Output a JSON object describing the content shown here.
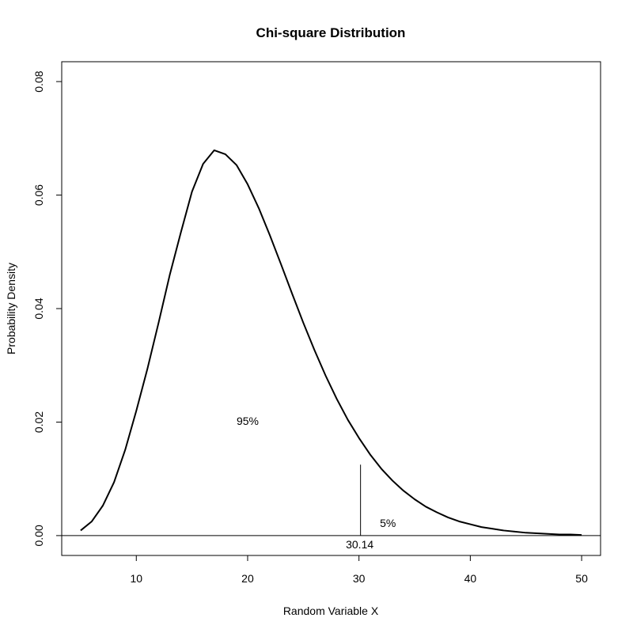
{
  "chart_data": {
    "type": "line",
    "title": "Chi-square Distribution",
    "xlabel": "Random Variable X",
    "ylabel": "Probability Density",
    "xlim": [
      3.3,
      51.7
    ],
    "ylim": [
      -0.0035,
      0.0835
    ],
    "x_ticks": [
      10,
      20,
      30,
      40,
      50
    ],
    "x_tick_labels": [
      "10",
      "20",
      "30",
      "40",
      "50"
    ],
    "y_ticks": [
      0.0,
      0.02,
      0.04,
      0.06,
      0.08
    ],
    "y_tick_labels": [
      "0.00",
      "0.02",
      "0.04",
      "0.06",
      "0.08"
    ],
    "grid": false,
    "legend": null,
    "distribution": {
      "family": "chi-square",
      "degrees_of_freedom": 19
    },
    "series": [
      {
        "x": [
          5,
          6,
          7,
          8,
          9,
          10,
          11,
          12,
          13,
          14,
          15,
          16,
          17,
          18,
          19,
          20,
          21,
          22,
          23,
          24,
          25,
          26,
          27,
          28,
          29,
          30,
          31,
          32,
          33,
          34,
          35,
          36,
          37,
          38,
          39,
          40,
          41,
          42,
          43,
          44,
          45,
          46,
          47,
          48,
          49,
          50
        ],
        "y": [
          0.0009,
          0.0025,
          0.0053,
          0.0094,
          0.0151,
          0.022,
          0.0294,
          0.0375,
          0.0459,
          0.0534,
          0.0606,
          0.0655,
          0.0679,
          0.0672,
          0.0653,
          0.0619,
          0.0577,
          0.0529,
          0.0478,
          0.0426,
          0.0375,
          0.0327,
          0.0282,
          0.0241,
          0.0204,
          0.0172,
          0.0143,
          0.0118,
          0.0097,
          0.0079,
          0.0064,
          0.0051,
          0.0041,
          0.0032,
          0.0025,
          0.002,
          0.0015,
          0.0012,
          0.0009,
          0.0007,
          0.0005,
          0.0004,
          0.0003,
          0.0002,
          0.0002,
          0.0001
        ]
      }
    ],
    "reference_line_y": 0,
    "critical_value": {
      "x": 30.14,
      "y_top": 0.0125,
      "label": "30.14"
    },
    "annotations": [
      {
        "text": "95%",
        "x": 20,
        "y": 0.0195
      },
      {
        "text": "5%",
        "x": 32.6,
        "y": 0.0015
      }
    ]
  }
}
